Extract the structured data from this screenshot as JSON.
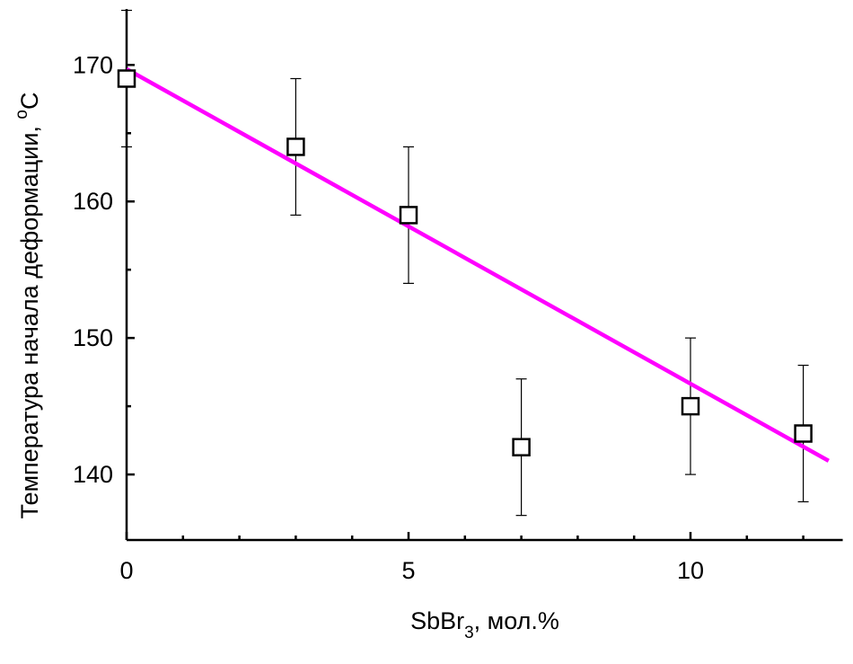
{
  "chart_data": {
    "type": "scatter",
    "xlabel_parts": [
      "SbBr",
      "3",
      ", мол.%"
    ],
    "ylabel_parts": [
      "Температура начала деформации, ",
      "o",
      "C"
    ],
    "xlim": [
      0,
      12.7
    ],
    "ylim": [
      135.2,
      174.1
    ],
    "xticks": [
      0,
      5,
      10
    ],
    "yticks": [
      140,
      150,
      160,
      170
    ],
    "x_minor_ticks": [
      1,
      2,
      3,
      4,
      6,
      7,
      8,
      9,
      11,
      12
    ],
    "y_minor_ticks": [
      145,
      155,
      165
    ],
    "series": [
      {
        "x": [
          0,
          3,
          5,
          7,
          10,
          12
        ],
        "values": [
          169,
          164,
          159,
          142,
          145,
          143
        ],
        "errors": [
          5,
          5,
          5,
          5,
          5,
          5
        ],
        "color": "#000000"
      }
    ],
    "fit": {
      "x": [
        0,
        12.45
      ],
      "values": [
        169.7,
        141
      ],
      "color": "#ff00ff"
    }
  }
}
